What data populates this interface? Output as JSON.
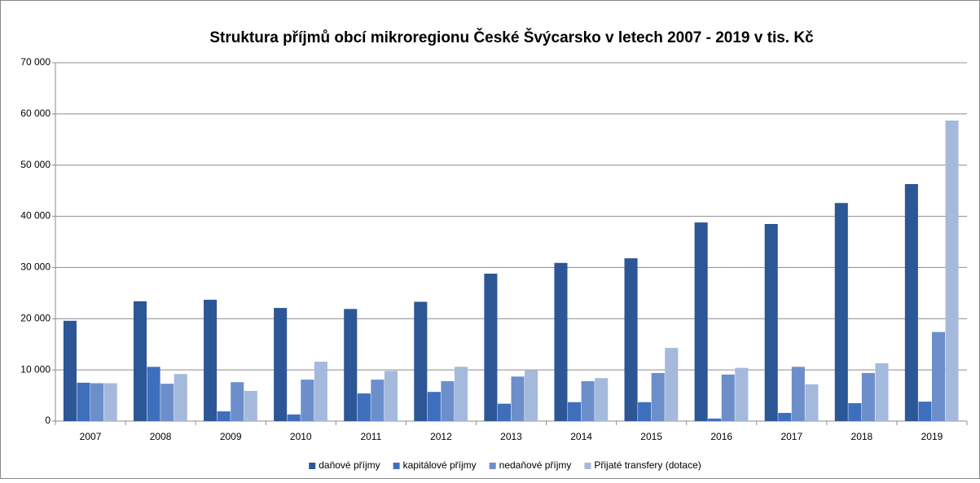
{
  "chart_data": {
    "type": "bar",
    "title": "Struktura příjmů obcí mikroregionu České Švýcarsko v letech 2007 - 2019 v tis. Kč",
    "categories": [
      "2007",
      "2008",
      "2009",
      "2010",
      "2011",
      "2012",
      "2013",
      "2014",
      "2015",
      "2016",
      "2017",
      "2018",
      "2019"
    ],
    "series": [
      {
        "name": "daňové příjmy",
        "color": "#2c5696",
        "values": [
          19600,
          23400,
          23700,
          22100,
          21900,
          23300,
          28800,
          30900,
          31800,
          38800,
          38500,
          42600,
          46300
        ]
      },
      {
        "name": "kapitálové příjmy",
        "color": "#3e6fbd",
        "values": [
          7500,
          10600,
          1900,
          1300,
          5400,
          5700,
          3400,
          3700,
          3700,
          500,
          1600,
          3500,
          3800
        ]
      },
      {
        "name": "nedaňové příjmy",
        "color": "#6c8fcc",
        "values": [
          7400,
          7300,
          7600,
          8100,
          8100,
          7800,
          8700,
          7800,
          9400,
          9100,
          10600,
          9400,
          17400
        ]
      },
      {
        "name": "Přijaté transfery (dotace)",
        "color": "#a5b9dc",
        "values": [
          7400,
          9200,
          5900,
          11600,
          9800,
          10600,
          9900,
          8400,
          14300,
          10400,
          7200,
          11300,
          58700
        ]
      }
    ],
    "ylim": [
      0,
      70000
    ],
    "yticks": [
      {
        "value": 0,
        "label": "0"
      },
      {
        "value": 10000,
        "label": "10 000"
      },
      {
        "value": 20000,
        "label": "20 000"
      },
      {
        "value": 30000,
        "label": "30 000"
      },
      {
        "value": 40000,
        "label": "40 000"
      },
      {
        "value": 50000,
        "label": "50 000"
      },
      {
        "value": 60000,
        "label": "60 000"
      },
      {
        "value": 70000,
        "label": "70 000"
      }
    ],
    "grid": true,
    "legend": "bottom"
  }
}
